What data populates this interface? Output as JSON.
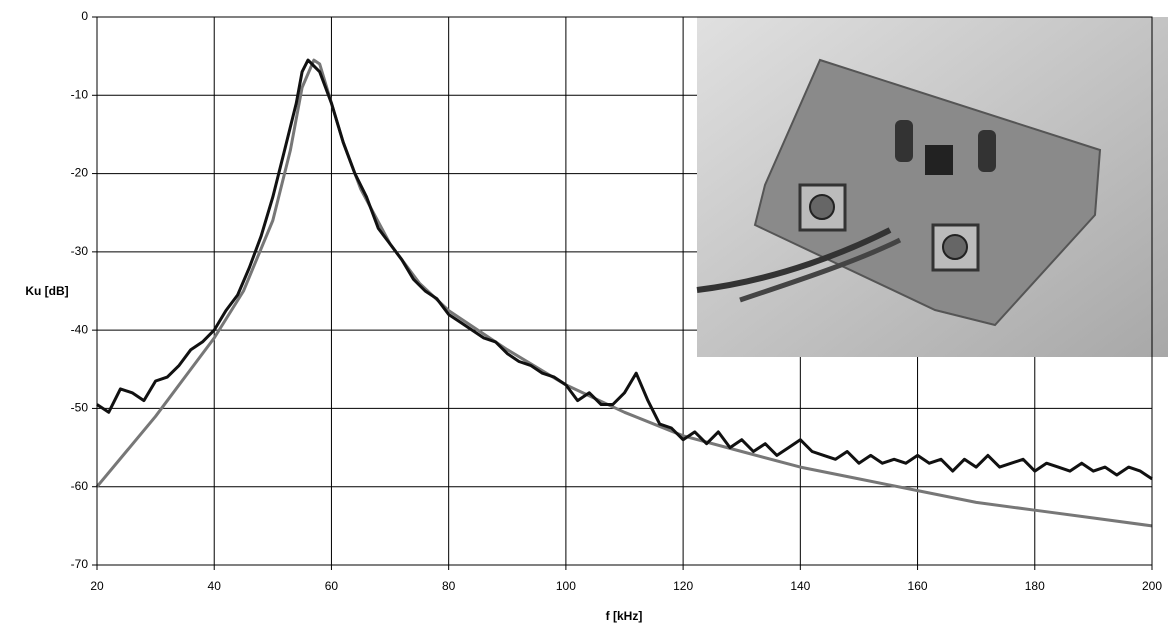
{
  "chart_data": {
    "type": "line",
    "x_label": "f [kHz]",
    "y_label": "Ku [dB]",
    "xlim": [
      20,
      200
    ],
    "xticks": [
      20,
      40,
      60,
      80,
      100,
      120,
      140,
      160,
      180,
      200
    ],
    "ylim": [
      -70,
      0
    ],
    "yticks": [
      0,
      -10,
      -20,
      -30,
      -40,
      -50,
      -60,
      -70
    ],
    "grid": true,
    "series": [
      {
        "color": "#777777",
        "x": [
          20,
          25,
          30,
          35,
          40,
          45,
          50,
          53,
          55,
          57,
          58,
          60,
          62,
          65,
          70,
          75,
          80,
          90,
          100,
          110,
          120,
          130,
          140,
          150,
          160,
          170,
          180,
          190,
          200
        ],
        "values": [
          -60,
          -55.5,
          -51,
          -46,
          -41,
          -35,
          -26,
          -17,
          -9,
          -5.5,
          -6,
          -11,
          -16,
          -22,
          -29,
          -34,
          -37.5,
          -42.5,
          -47,
          -50.5,
          -53.5,
          -55.5,
          -57.5,
          -59,
          -60.5,
          -62,
          -63,
          -64,
          -65
        ]
      },
      {
        "color": "#111111",
        "x": [
          20,
          22,
          24,
          26,
          28,
          30,
          32,
          34,
          36,
          38,
          40,
          42,
          44,
          46,
          48,
          50,
          52,
          54,
          55,
          56,
          58,
          60,
          62,
          64,
          66,
          68,
          70,
          72,
          74,
          76,
          78,
          80,
          82,
          84,
          86,
          88,
          90,
          92,
          94,
          96,
          98,
          100,
          102,
          104,
          106,
          108,
          110,
          112,
          114,
          116,
          118,
          120,
          122,
          124,
          126,
          128,
          130,
          132,
          134,
          136,
          138,
          140,
          142,
          144,
          146,
          148,
          150,
          152,
          154,
          156,
          158,
          160,
          162,
          164,
          166,
          168,
          170,
          172,
          174,
          176,
          178,
          180,
          182,
          184,
          186,
          188,
          190,
          192,
          194,
          196,
          198,
          200
        ],
        "values": [
          -49.5,
          -50.5,
          -47.5,
          -48,
          -49,
          -46.5,
          -46,
          -44.5,
          -42.5,
          -41.5,
          -40,
          -37.5,
          -35.5,
          -32,
          -28,
          -23,
          -17,
          -11,
          -7,
          -5.5,
          -7,
          -11,
          -16,
          -20,
          -23,
          -27,
          -29,
          -31,
          -33.5,
          -35,
          -36,
          -38,
          -39,
          -40,
          -41,
          -41.5,
          -43,
          -44,
          -44.5,
          -45.5,
          -46,
          -47,
          -49,
          -48,
          -49.5,
          -49.5,
          -48,
          -45.5,
          -49,
          -52,
          -52.5,
          -54,
          -53,
          -54.5,
          -53,
          -55,
          -54,
          -55.5,
          -54.5,
          -56,
          -55,
          -54,
          -55.5,
          -56,
          -56.5,
          -55.5,
          -57,
          -56,
          -57,
          -56.5,
          -57,
          -56,
          -57,
          -56.5,
          -58,
          -56.5,
          -57.5,
          -56,
          -57.5,
          -57,
          -56.5,
          -58,
          -57,
          -57.5,
          -58,
          -57,
          -58,
          -57.5,
          -58.5,
          -57.5,
          -58,
          -59
        ]
      }
    ]
  }
}
